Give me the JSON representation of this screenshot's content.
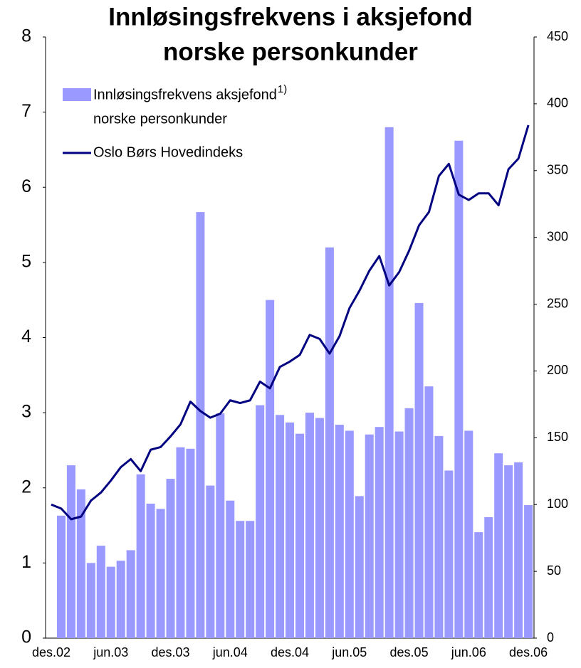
{
  "chart_data": {
    "type": "bar_line",
    "title": [
      "Innløsingsfrekvens i aksjefond",
      "norske personkunder"
    ],
    "categories": [
      "des.02",
      null,
      null,
      null,
      null,
      null,
      "jun.03",
      null,
      null,
      null,
      null,
      null,
      "des.03",
      null,
      null,
      null,
      null,
      null,
      "jun.04",
      null,
      null,
      null,
      null,
      null,
      "des.04",
      null,
      null,
      null,
      null,
      null,
      "jun.05",
      null,
      null,
      null,
      null,
      null,
      "des.05",
      null,
      null,
      null,
      null,
      null,
      "jun.06",
      null,
      null,
      null,
      null,
      null,
      "des.06"
    ],
    "series": [
      {
        "name": "Innløsingsfrekvens aksjefond",
        "name_note": "1)",
        "name_line2": "norske personkunder",
        "type": "bar",
        "color": "#9999ff",
        "axis": "y",
        "values": [
          null,
          1.63,
          2.3,
          1.98,
          1.0,
          1.23,
          0.95,
          1.03,
          1.17,
          2.18,
          1.79,
          1.72,
          2.12,
          2.54,
          2.52,
          5.67,
          2.03,
          2.99,
          1.83,
          1.56,
          1.56,
          3.1,
          4.5,
          2.97,
          2.87,
          2.72,
          3.0,
          2.93,
          5.2,
          2.84,
          2.76,
          1.89,
          2.71,
          2.81,
          6.8,
          2.75,
          3.06,
          4.46,
          3.35,
          2.69,
          2.23,
          6.62,
          2.76,
          1.41,
          1.61,
          2.46,
          2.3,
          2.34,
          1.77
        ]
      },
      {
        "name": "Oslo Børs Hovedindeks",
        "type": "line",
        "color": "#000080",
        "axis": "y2",
        "values": [
          100,
          97,
          89,
          91,
          103,
          109,
          118,
          128,
          134,
          125,
          141,
          143,
          151,
          160,
          177,
          170,
          165,
          168,
          178,
          176,
          178,
          192,
          187,
          203,
          207,
          212,
          227,
          224,
          213,
          226,
          247,
          260,
          275,
          286,
          264,
          274,
          290,
          309,
          319,
          346,
          355,
          332,
          328,
          333,
          333,
          324,
          351,
          359,
          384
        ]
      }
    ],
    "ylim": [
      0,
      8
    ],
    "yticks": [
      0,
      1,
      2,
      3,
      4,
      5,
      6,
      7,
      8
    ],
    "y2lim": [
      0,
      450
    ],
    "y2ticks": [
      0,
      50,
      100,
      150,
      200,
      250,
      300,
      350,
      400,
      450
    ],
    "grid": false
  }
}
